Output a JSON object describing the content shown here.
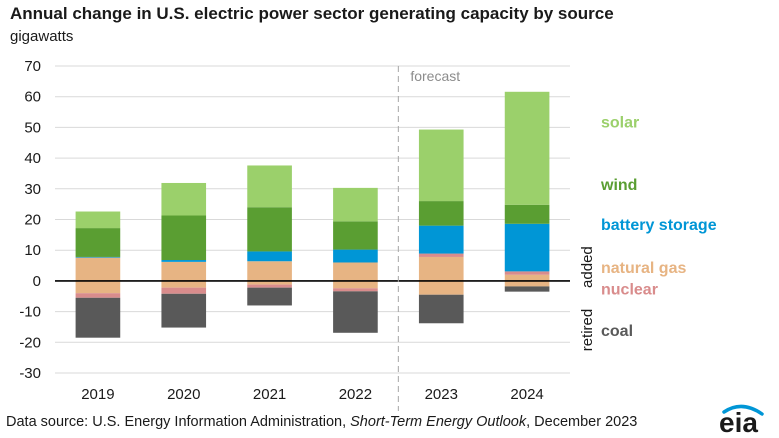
{
  "header": {
    "title": "Annual change in U.S. electric power sector generating capacity by source",
    "units": "gigawatts"
  },
  "forecast_label": "forecast",
  "side_labels": {
    "added": "added",
    "retired": "retired"
  },
  "source": {
    "prefix": "Data source: U.S. Energy Information Administration, ",
    "italic": "Short-Term Energy Outlook",
    "suffix": ", December 2023"
  },
  "logo": {
    "text": "eia",
    "color": "#0096d6"
  },
  "chart_data": {
    "type": "bar",
    "stacked": true,
    "categories": [
      "2019",
      "2020",
      "2021",
      "2022",
      "2023",
      "2024"
    ],
    "ylim": [
      -30,
      70
    ],
    "yticks": [
      -30,
      -20,
      -10,
      0,
      10,
      20,
      30,
      40,
      50,
      60,
      70
    ],
    "grid": true,
    "forecast_start": "2023",
    "legend": "right, labels colored by series",
    "series_added": [
      {
        "name": "natural gas",
        "color": "#e7b483",
        "values": [
          7.6,
          6.2,
          6.4,
          6.0,
          7.8,
          2.0
        ]
      },
      {
        "name": "nuclear",
        "color": "#d98c8c",
        "values": [
          0.0,
          0.0,
          0.0,
          0.0,
          1.1,
          1.1
        ]
      },
      {
        "name": "battery storage",
        "color": "#0096d6",
        "values": [
          0.2,
          0.6,
          3.2,
          4.2,
          9.1,
          15.5
        ]
      },
      {
        "name": "wind",
        "color": "#5a9e32",
        "values": [
          9.4,
          14.5,
          14.4,
          9.2,
          8.0,
          6.2
        ]
      },
      {
        "name": "solar",
        "color": "#9bd06b",
        "values": [
          5.4,
          10.6,
          13.6,
          10.9,
          23.3,
          36.8
        ]
      }
    ],
    "series_retired": [
      {
        "name": "natural gas",
        "color": "#e7b483",
        "values": [
          -4.0,
          -2.2,
          -1.2,
          -2.4,
          -4.5,
          -1.8
        ]
      },
      {
        "name": "nuclear",
        "color": "#d98c8c",
        "values": [
          -1.5,
          -2.0,
          -1.0,
          -1.0,
          0.0,
          0.0
        ]
      },
      {
        "name": "coal",
        "color": "#595959",
        "values": [
          -13.0,
          -11.0,
          -5.8,
          -13.5,
          -9.3,
          -1.7
        ]
      }
    ],
    "legend_labels": [
      {
        "name": "solar",
        "color": "#9bd06b",
        "y": 52
      },
      {
        "name": "wind",
        "color": "#5a9e32",
        "y": 31.5
      },
      {
        "name": "battery storage",
        "color": "#0096d6",
        "y": 18.5
      },
      {
        "name": "natural gas",
        "color": "#e7b483",
        "y": 4.5
      },
      {
        "name": "nuclear",
        "color": "#d98c8c",
        "y": -2.5
      },
      {
        "name": "coal",
        "color": "#595959",
        "y": -16
      }
    ]
  }
}
